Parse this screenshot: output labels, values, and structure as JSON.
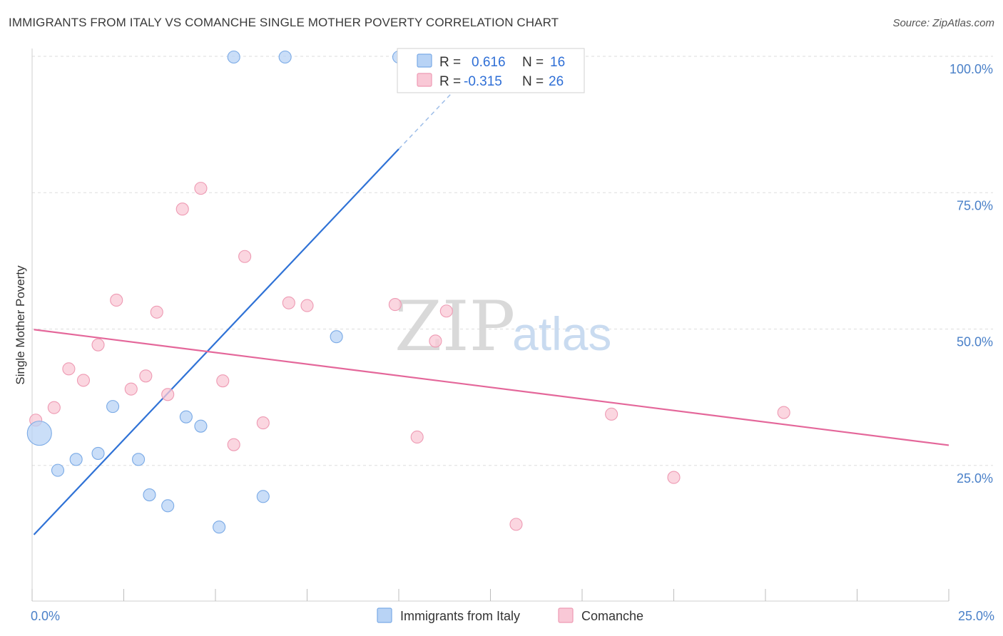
{
  "title": "IMMIGRANTS FROM ITALY VS COMANCHE SINGLE MOTHER POVERTY CORRELATION CHART",
  "source": "Source: ZipAtlas.com",
  "watermark": {
    "zip": "ZIP",
    "atlas": "atlas"
  },
  "colors": {
    "italy_fill": "#b8d3f5",
    "italy_stroke": "#7aaae6",
    "italy_line": "#2f72d6",
    "comanche_fill": "#f9c8d6",
    "comanche_stroke": "#ee9ab3",
    "comanche_line": "#e4679a",
    "axis_label": "#4a80c8",
    "grid": "#dddddd"
  },
  "legend": {
    "rows": [
      {
        "r_label": "R =",
        "r_value": "0.616",
        "n_label": "N =",
        "n_value": "16"
      },
      {
        "r_label": "R =",
        "r_value": "-0.315",
        "n_label": "N =",
        "n_value": "26"
      }
    ]
  },
  "chart_data": {
    "type": "scatter",
    "title": "IMMIGRANTS FROM ITALY VS COMANCHE SINGLE MOTHER POVERTY CORRELATION CHART",
    "xlabel": "",
    "ylabel": "Single Mother Poverty",
    "xlim": [
      0,
      25
    ],
    "ylim": [
      0,
      100
    ],
    "x_tick_labels": [
      "0.0%",
      "25.0%"
    ],
    "y_tick_labels": [
      "25.0%",
      "50.0%",
      "75.0%",
      "100.0%"
    ],
    "y_tick_values": [
      25,
      50,
      75,
      100
    ],
    "grid": true,
    "legend_position": "top-center",
    "series": [
      {
        "name": "Immigrants from Italy",
        "r": 0.616,
        "n": 16,
        "points": [
          {
            "x": 0.2,
            "y": 30.9,
            "big": true
          },
          {
            "x": 0.7,
            "y": 24.1
          },
          {
            "x": 1.2,
            "y": 26.1
          },
          {
            "x": 1.8,
            "y": 27.2
          },
          {
            "x": 2.2,
            "y": 35.8
          },
          {
            "x": 2.9,
            "y": 26.1
          },
          {
            "x": 3.2,
            "y": 19.6
          },
          {
            "x": 3.7,
            "y": 17.6
          },
          {
            "x": 4.2,
            "y": 33.9
          },
          {
            "x": 4.6,
            "y": 32.2
          },
          {
            "x": 5.1,
            "y": 13.7
          },
          {
            "x": 6.3,
            "y": 19.3
          },
          {
            "x": 5.5,
            "y": 102.3
          },
          {
            "x": 6.9,
            "y": 102.3
          },
          {
            "x": 8.3,
            "y": 48.6
          },
          {
            "x": 10.0,
            "y": 102.3
          }
        ],
        "trendline": {
          "x0": 0.05,
          "y0": 12.3,
          "x1": 10.0,
          "y1": 83.0,
          "dash_x1": 12.0,
          "dash_y1": 97.2
        }
      },
      {
        "name": "Comanche",
        "r": -0.315,
        "n": 26,
        "points": [
          {
            "x": 0.1,
            "y": 33.3
          },
          {
            "x": 0.6,
            "y": 35.6
          },
          {
            "x": 1.0,
            "y": 42.7
          },
          {
            "x": 1.4,
            "y": 40.6
          },
          {
            "x": 1.8,
            "y": 47.1
          },
          {
            "x": 2.3,
            "y": 55.3
          },
          {
            "x": 2.7,
            "y": 39.0
          },
          {
            "x": 3.1,
            "y": 41.4
          },
          {
            "x": 3.4,
            "y": 53.1
          },
          {
            "x": 3.7,
            "y": 38.0
          },
          {
            "x": 4.1,
            "y": 72.0
          },
          {
            "x": 4.6,
            "y": 75.8
          },
          {
            "x": 5.2,
            "y": 40.5
          },
          {
            "x": 5.5,
            "y": 28.8
          },
          {
            "x": 5.8,
            "y": 63.3
          },
          {
            "x": 6.3,
            "y": 32.8
          },
          {
            "x": 7.0,
            "y": 54.8
          },
          {
            "x": 7.5,
            "y": 54.3
          },
          {
            "x": 9.9,
            "y": 54.5
          },
          {
            "x": 10.5,
            "y": 30.2
          },
          {
            "x": 11.0,
            "y": 47.8
          },
          {
            "x": 11.3,
            "y": 53.3
          },
          {
            "x": 13.2,
            "y": 14.2
          },
          {
            "x": 15.8,
            "y": 34.4
          },
          {
            "x": 17.5,
            "y": 22.8
          },
          {
            "x": 20.5,
            "y": 34.7
          }
        ],
        "trendline": {
          "x0": 0.05,
          "y0": 49.9,
          "x1": 25.0,
          "y1": 28.7
        }
      }
    ]
  }
}
